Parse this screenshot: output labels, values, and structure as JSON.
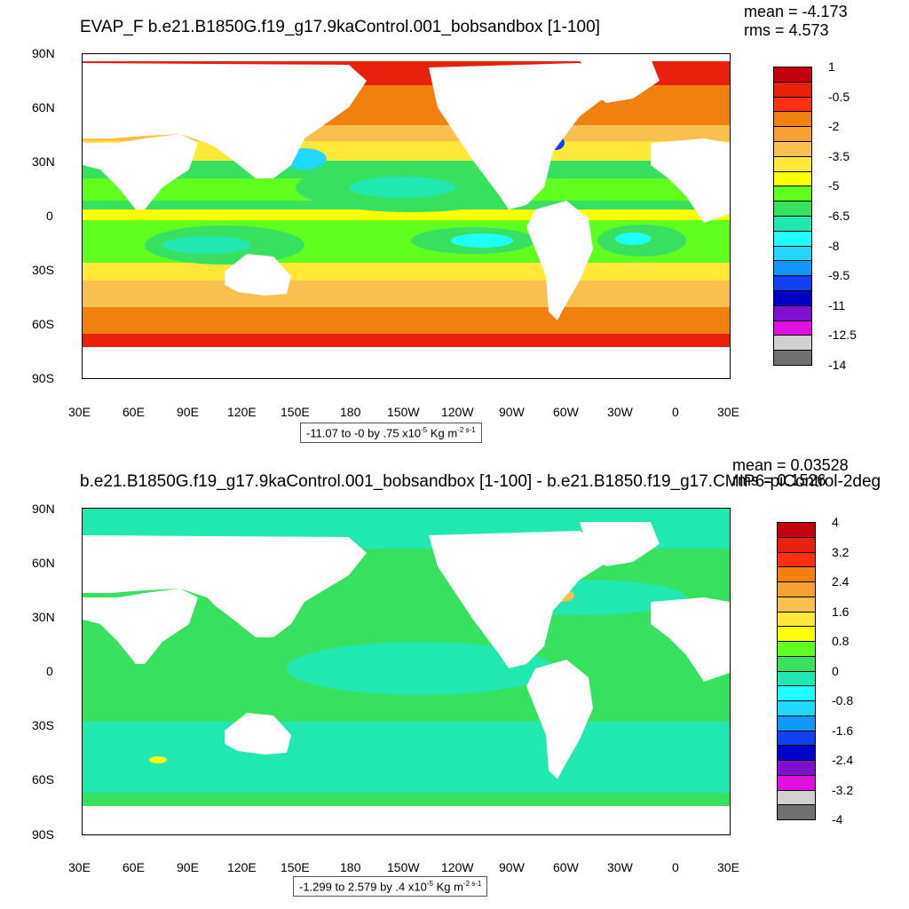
{
  "panel1": {
    "title": "EVAP_F b.e21.B1850G.f19_g17.9kaControl.001_bobsandbox [1-100]",
    "mean": "mean = -4.173",
    "rms": "rms = 4.573",
    "info_main": "-11.07 to -0 by .75 x10",
    "info_exp": "-5",
    "info_units": " Kg m",
    "info_units_exp": "-2 s-1",
    "colorbar_labels": [
      "1",
      "-0.5",
      "-2",
      "-3.5",
      "-5",
      "-6.5",
      "-8",
      "-9.5",
      "-11",
      "-12.5",
      "-14"
    ],
    "colorbar_colors": [
      "#c4000e",
      "#e8200e",
      "#ff3010",
      "#f08010",
      "#f5a030",
      "#f9c050",
      "#ffe838",
      "#ffff00",
      "#60ff20",
      "#38e060",
      "#20e8b0",
      "#20ffff",
      "#20d8ff",
      "#1098ff",
      "#1040f0",
      "#0000c8",
      "#8010d0",
      "#e010e0",
      "#d0d0d0",
      "#707070"
    ]
  },
  "panel2": {
    "title": "b.e21.B1850G.f19_g17.9kaControl.001_bobsandbox [1-100] - b.e21.B1850.f19_g17.CMIP6-piControl-2deg",
    "mean": "mean = 0.03528",
    "rms": "rms = 0.1526",
    "info_main": "-1.299 to 2.579 by .4 x10",
    "info_exp": "-5",
    "info_units": " Kg m",
    "info_units_exp": "-2 s-1",
    "colorbar_labels": [
      "4",
      "3.2",
      "2.4",
      "1.6",
      "0.8",
      "0",
      "-0.8",
      "-1.6",
      "-2.4",
      "-3.2",
      "-4"
    ],
    "colorbar_colors": [
      "#c4000e",
      "#e8200e",
      "#ff3010",
      "#f08010",
      "#f5a030",
      "#f9c050",
      "#ffe838",
      "#ffff00",
      "#60ff20",
      "#38e060",
      "#20e8b0",
      "#20ffff",
      "#20d8ff",
      "#1098ff",
      "#1040f0",
      "#0000c8",
      "#8010d0",
      "#e010e0",
      "#d0d0d0",
      "#707070"
    ]
  },
  "axes": {
    "lat_labels": [
      "90N",
      "60N",
      "30N",
      "0",
      "30S",
      "60S",
      "90S"
    ],
    "lon_labels": [
      "30E",
      "60E",
      "90E",
      "120E",
      "150E",
      "180",
      "150W",
      "120W",
      "90W",
      "60W",
      "30W",
      "0",
      "30E"
    ]
  }
}
